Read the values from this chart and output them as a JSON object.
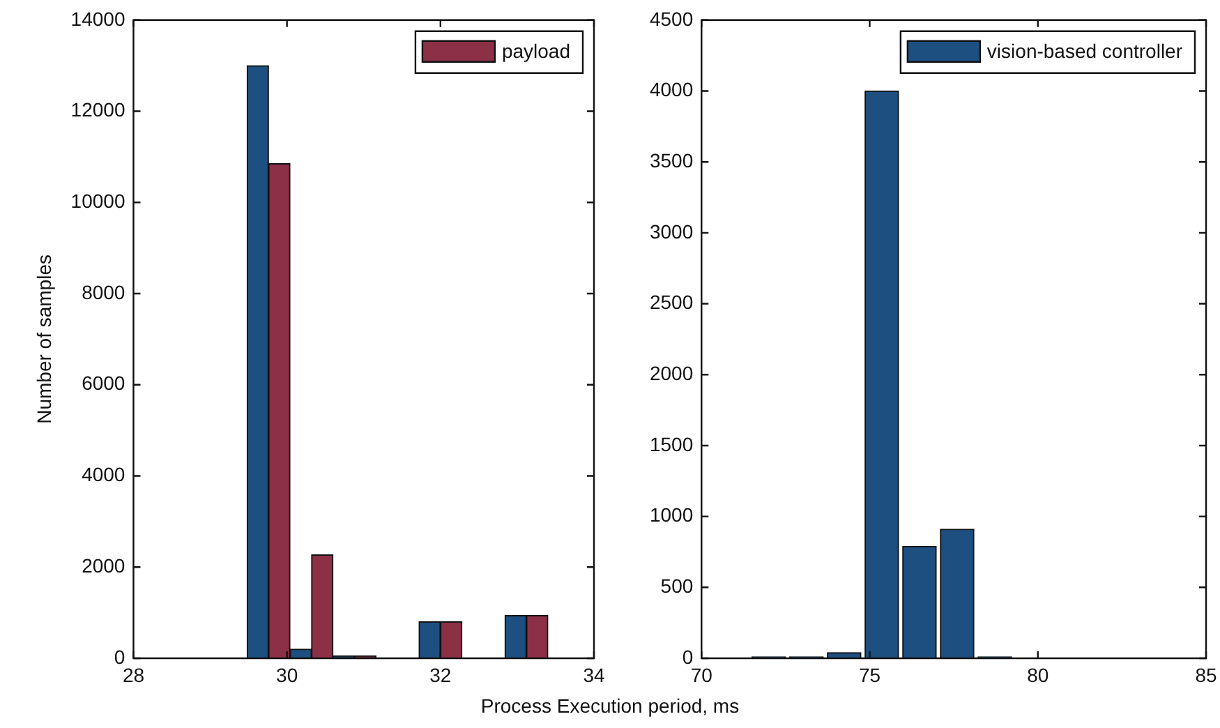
{
  "chart_data": [
    {
      "type": "histogram",
      "ylabel": "Number of samples",
      "xlabel": "Process Execution period, ms",
      "bins": [
        29.48,
        30.04,
        30.6,
        31.16,
        31.72,
        32.28,
        32.84,
        33.4
      ],
      "series": [
        {
          "color": "#1d4f80",
          "values": [
            13000,
            200,
            50,
            0,
            800,
            0,
            940
          ]
        },
        {
          "name": "payload",
          "color": "#8c3048",
          "values": [
            10850,
            2270,
            50,
            0,
            800,
            0,
            940
          ]
        }
      ],
      "xlim": [
        28,
        34
      ],
      "xticks": [
        28,
        30,
        32,
        34
      ],
      "ylim": [
        0,
        14000
      ],
      "yticks": [
        0,
        2000,
        4000,
        6000,
        8000,
        10000,
        12000,
        14000
      ],
      "legend": "top right"
    },
    {
      "type": "histogram",
      "bins": [
        71.44,
        72.56,
        73.68,
        74.8,
        75.92,
        77.04,
        78.16,
        79.28
      ],
      "series": [
        {
          "name": "vision-based controller",
          "color": "#1d4f80",
          "values": [
            10,
            10,
            40,
            4000,
            790,
            910,
            10
          ]
        }
      ],
      "xlim": [
        70,
        85
      ],
      "xticks": [
        70,
        75,
        80,
        85
      ],
      "ylim": [
        0,
        4500
      ],
      "yticks": [
        0,
        500,
        1000,
        1500,
        2000,
        2500,
        3000,
        3500,
        4000,
        4500
      ],
      "legend": "top right"
    }
  ]
}
